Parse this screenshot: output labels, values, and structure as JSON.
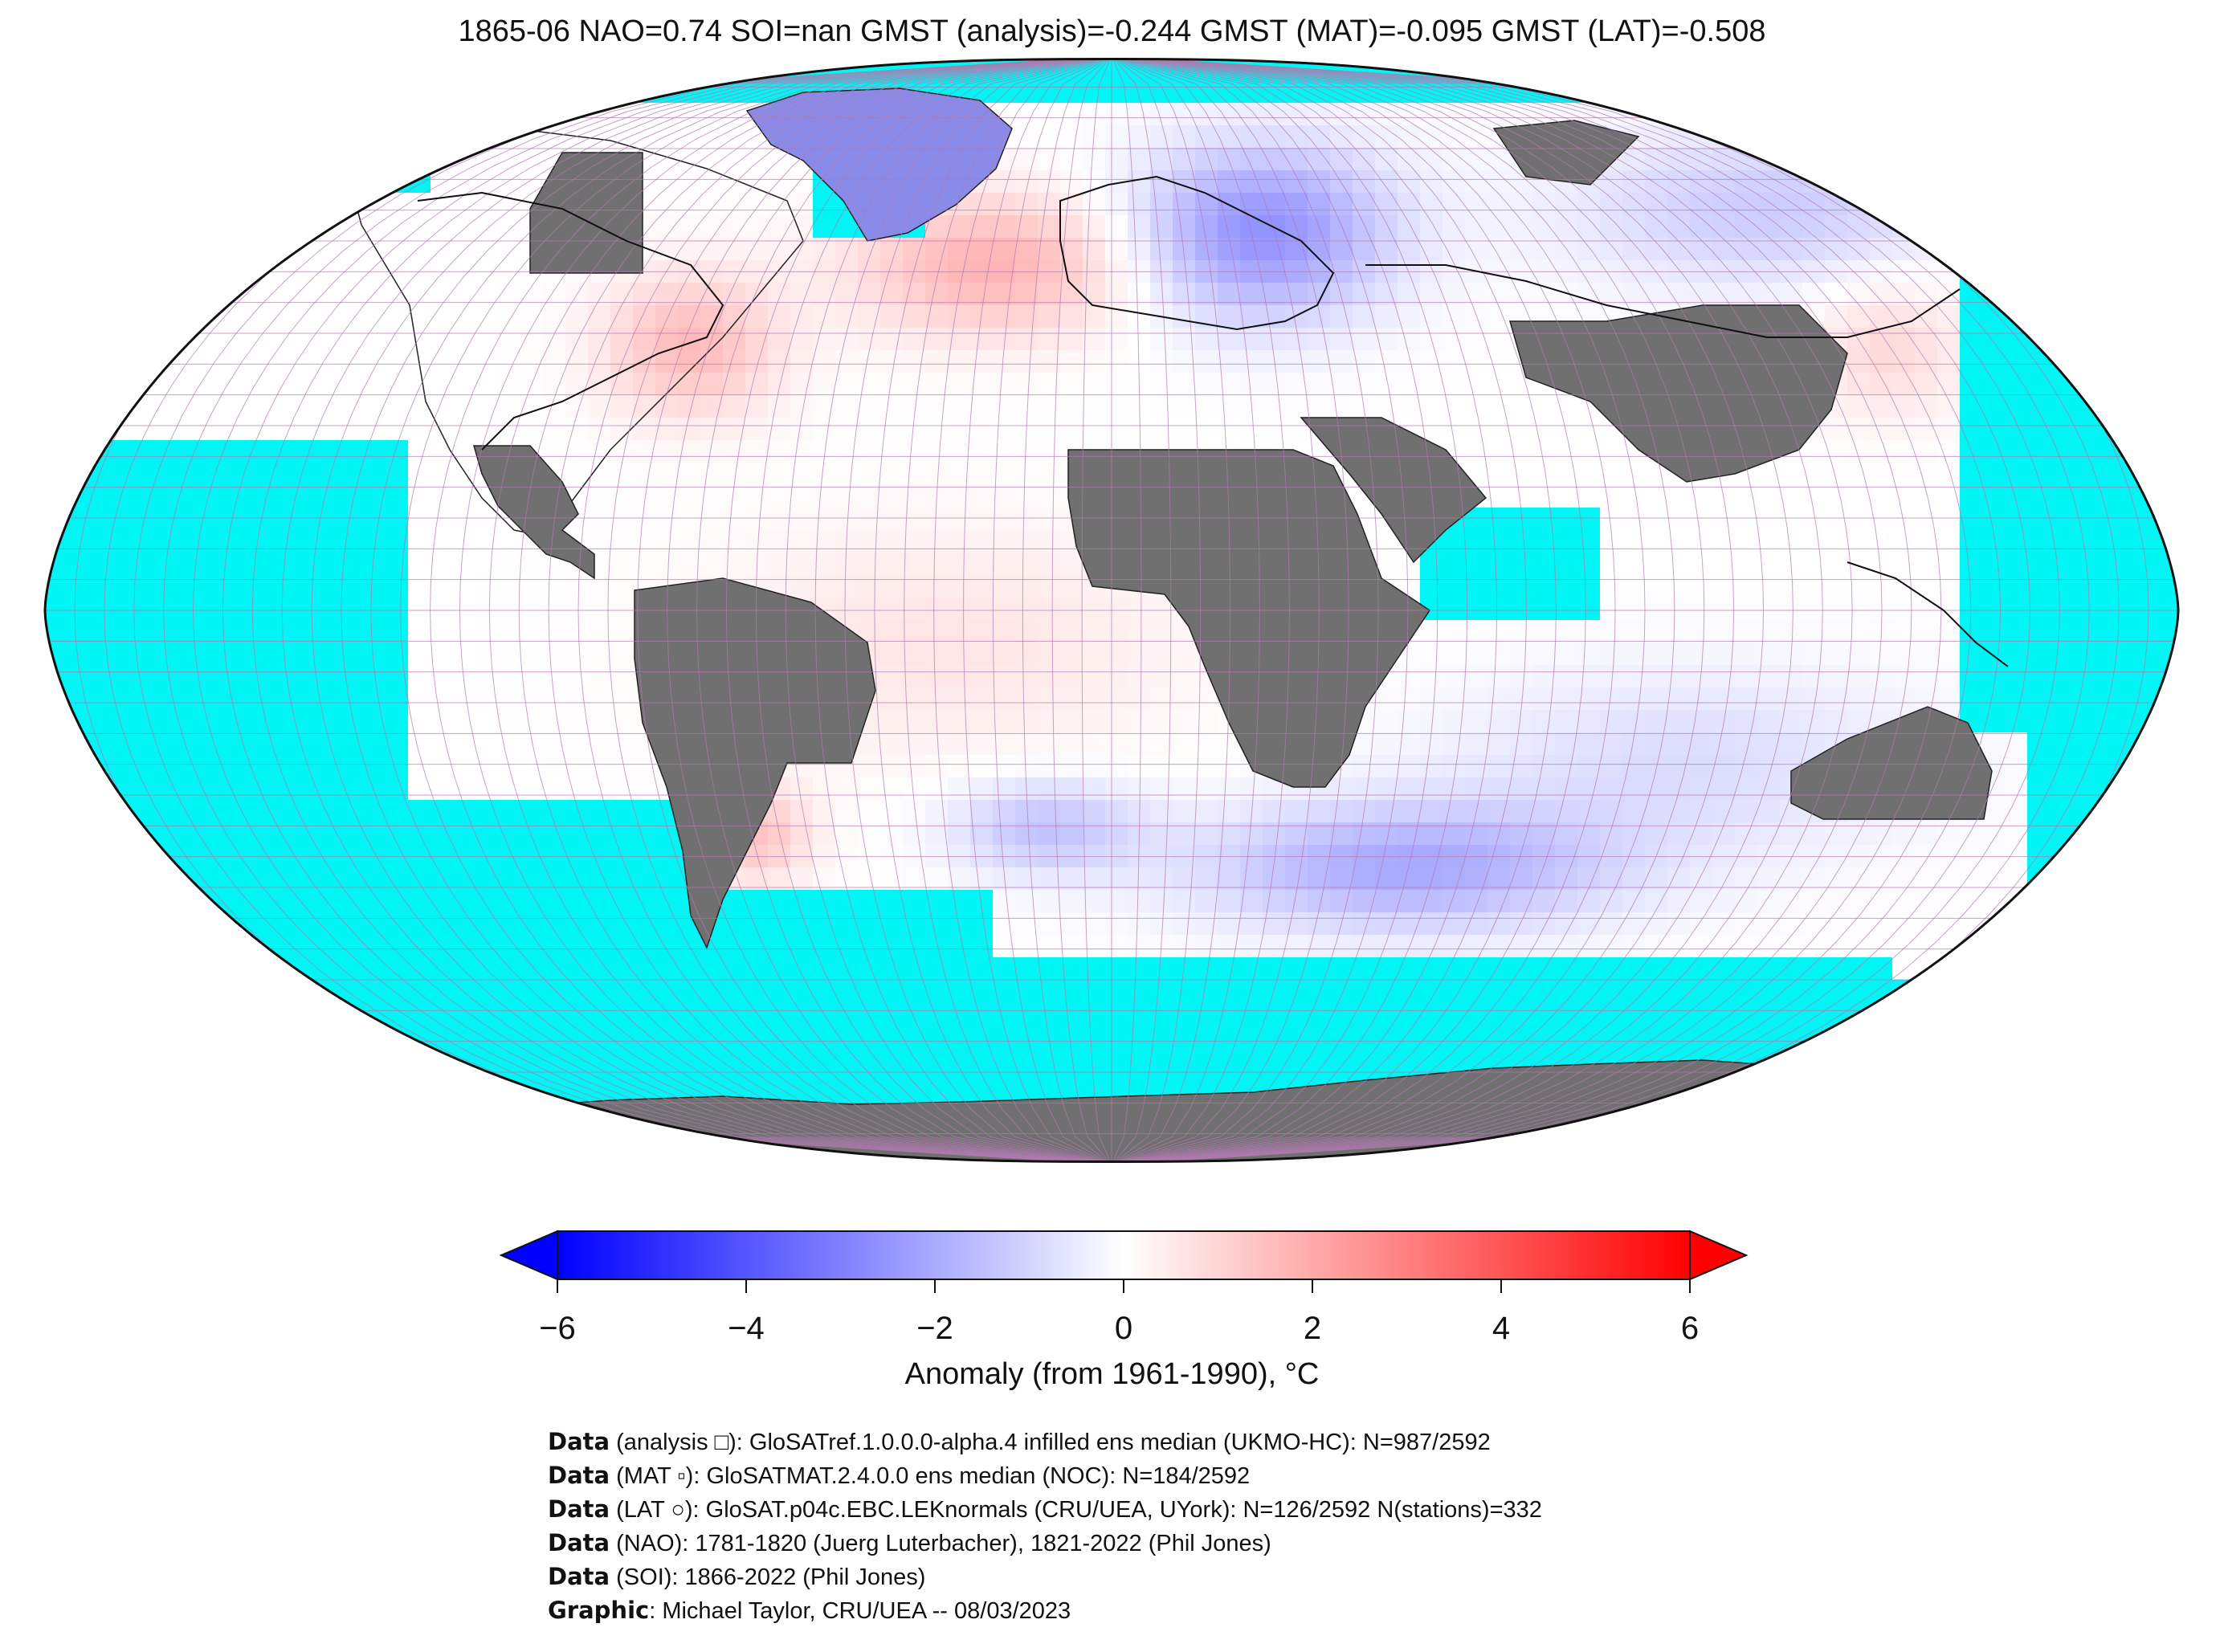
{
  "title": "1865-06 NAO=0.74 SOI=nan GMST (analysis)=-0.244 GMST (MAT)=-0.095 GMST (LAT)=-0.508",
  "colorbar": {
    "label": "Anomaly (from 1961-1990), °C",
    "min": -6,
    "max": 6,
    "ticks": [
      "−6",
      "−4",
      "−2",
      "0",
      "2",
      "4",
      "6"
    ],
    "colors": {
      "low": "#0000ff",
      "mid": "#ffffff",
      "high": "#ff0000"
    }
  },
  "map": {
    "ocean_color": "#00f5f5",
    "land_color": "#707070",
    "gridline_color": "#b07ab0"
  },
  "credits": [
    {
      "key": "Data",
      "text": " (analysis □): GloSATref.1.0.0.0-alpha.4 infilled ens median (UKMO-HC): N=987/2592"
    },
    {
      "key": "Data",
      "text": " (MAT ▫): GloSATMAT.2.4.0.0 ens median (NOC): N=184/2592"
    },
    {
      "key": "Data",
      "text": " (LAT ○): GloSAT.p04c.EBC.LEKnormals (CRU/UEA, UYork): N=126/2592 N(stations)=332"
    },
    {
      "key": "Data",
      "text": " (NAO): 1781-1820 (Juerg Luterbacher), 1821-2022 (Phil Jones)"
    },
    {
      "key": "Data",
      "text": " (SOI): 1866-2022 (Phil Jones)"
    },
    {
      "key": "Graphic",
      "text": ": Michael Taylor, CRU/UEA -- 08/03/2023"
    }
  ]
}
